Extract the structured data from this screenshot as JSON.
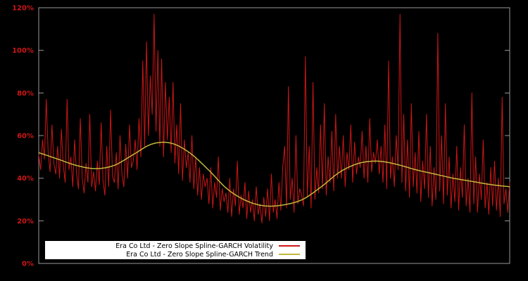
{
  "chart_data": {
    "type": "line",
    "title": "",
    "xlabel": "",
    "ylabel": "",
    "ylim": [
      0,
      120
    ],
    "grid": false,
    "legend_position": "bottom-left",
    "background_color": "#000000",
    "border_color": "#999999",
    "axis_label_color": "#cc1616",
    "y_ticks": [
      {
        "value": 0,
        "label": "0%"
      },
      {
        "value": 20,
        "label": "20%"
      },
      {
        "value": 40,
        "label": "40%"
      },
      {
        "value": 60,
        "label": "60%"
      },
      {
        "value": 80,
        "label": "80%"
      },
      {
        "value": 100,
        "label": "100%"
      },
      {
        "value": 120,
        "label": "120%"
      }
    ],
    "series": [
      {
        "name": "Era Co Ltd - Zero Slope Spline-GARCH Volatility",
        "color": "#cc1616",
        "smooth": false,
        "values": [
          51,
          44,
          58,
          49,
          77,
          52,
          43,
          65,
          47,
          42,
          55,
          40,
          63,
          46,
          38,
          77,
          44,
          50,
          36,
          58,
          42,
          35,
          68,
          40,
          33,
          47,
          38,
          70,
          36,
          43,
          34,
          48,
          37,
          66,
          39,
          32,
          55,
          36,
          72,
          41,
          38,
          52,
          35,
          60,
          42,
          36,
          56,
          40,
          65,
          45,
          48,
          58,
          44,
          68,
          50,
          95,
          55,
          104,
          60,
          88,
          70,
          117,
          62,
          100,
          55,
          96,
          50,
          85,
          58,
          78,
          52,
          85,
          47,
          65,
          42,
          75,
          39,
          58,
          45,
          52,
          38,
          60,
          35,
          50,
          32,
          45,
          30,
          42,
          36,
          40,
          28,
          45,
          26,
          38,
          31,
          50,
          25,
          35,
          29,
          33,
          24,
          40,
          22,
          35,
          27,
          48,
          23,
          32,
          26,
          38,
          21,
          34,
          24,
          30,
          20,
          36,
          23,
          28,
          19,
          31,
          22,
          35,
          20,
          42,
          24,
          30,
          21,
          38,
          25,
          45,
          55,
          26,
          83,
          30,
          40,
          24,
          60,
          28,
          35,
          32,
          27,
          97,
          31,
          55,
          26,
          85,
          30,
          45,
          33,
          65,
          35,
          75,
          32,
          50,
          38,
          62,
          34,
          70,
          40,
          55,
          40,
          60,
          36,
          52,
          44,
          65,
          38,
          57,
          42,
          50,
          45,
          62,
          40,
          55,
          38,
          68,
          43,
          52,
          47,
          58,
          42,
          55,
          38,
          65,
          35,
          95,
          40,
          50,
          36,
          60,
          44,
          117,
          38,
          70,
          34,
          58,
          31,
          75,
          36,
          52,
          33,
          62,
          29,
          48,
          35,
          70,
          31,
          55,
          27,
          45,
          30,
          108,
          34,
          60,
          28,
          75,
          32,
          50,
          26,
          42,
          29,
          55,
          25,
          45,
          31,
          65,
          27,
          40,
          24,
          80,
          28,
          50,
          24,
          42,
          30,
          58,
          26,
          38,
          23,
          45,
          27,
          48,
          25,
          40,
          22,
          78,
          28,
          35,
          24,
          38
        ]
      },
      {
        "name": "Era Co Ltd - Zero Slope Spline-GARCH Trend",
        "color": "#c2b93c",
        "smooth": true,
        "values": [
          52,
          49,
          46,
          44.5,
          46,
          51,
          56,
          56.5,
          52,
          44,
          35,
          29.5,
          27,
          27.5,
          30,
          36,
          43,
          47,
          48,
          46.5,
          44,
          42,
          40,
          38.5,
          37,
          36
        ]
      }
    ]
  }
}
